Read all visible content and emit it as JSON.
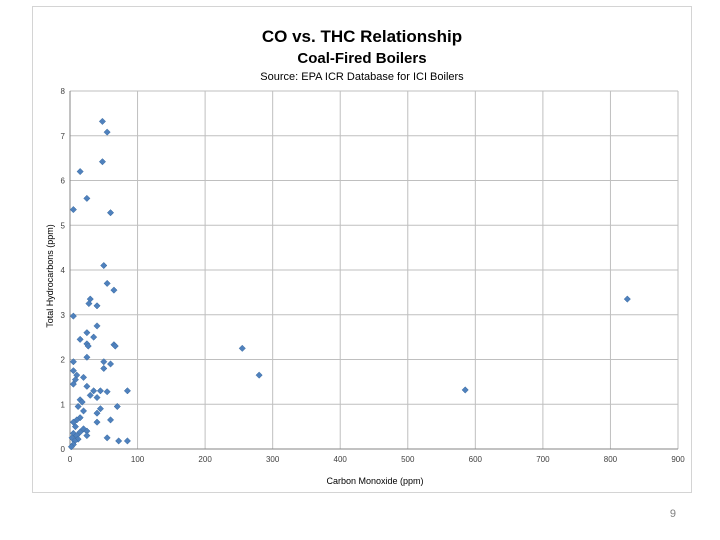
{
  "slide": {
    "page_number": "9"
  },
  "chart_data": {
    "type": "scatter",
    "title": "CO vs. THC Relationship",
    "subtitle": "Coal-Fired Boilers",
    "source": "Source:  EPA ICR Database for ICI Boilers",
    "xlabel": "Carbon Monoxide (ppm)",
    "ylabel": "Total Hydrocarbons (ppm)",
    "xlim": [
      0,
      900
    ],
    "ylim": [
      0,
      8
    ],
    "xticks": [
      0,
      100,
      200,
      300,
      400,
      500,
      600,
      700,
      800,
      900
    ],
    "yticks": [
      0,
      1,
      2,
      3,
      4,
      5,
      6,
      7,
      8
    ],
    "grid": true,
    "marker_color": "#4f81bd",
    "series": [
      {
        "points": [
          [
            48,
            7.32
          ],
          [
            55,
            7.08
          ],
          [
            48,
            6.42
          ],
          [
            15,
            6.2
          ],
          [
            25,
            5.6
          ],
          [
            5,
            5.35
          ],
          [
            60,
            5.28
          ],
          [
            50,
            4.1
          ],
          [
            55,
            3.7
          ],
          [
            65,
            3.55
          ],
          [
            30,
            3.35
          ],
          [
            28,
            3.25
          ],
          [
            40,
            3.2
          ],
          [
            5,
            2.97
          ],
          [
            40,
            2.75
          ],
          [
            25,
            2.6
          ],
          [
            35,
            2.5
          ],
          [
            15,
            2.45
          ],
          [
            25,
            2.35
          ],
          [
            27,
            2.3
          ],
          [
            65,
            2.33
          ],
          [
            67,
            2.3
          ],
          [
            25,
            2.05
          ],
          [
            5,
            1.95
          ],
          [
            50,
            1.95
          ],
          [
            60,
            1.9
          ],
          [
            5,
            1.75
          ],
          [
            50,
            1.8
          ],
          [
            10,
            1.65
          ],
          [
            20,
            1.6
          ],
          [
            8,
            1.55
          ],
          [
            5,
            1.45
          ],
          [
            25,
            1.4
          ],
          [
            35,
            1.3
          ],
          [
            45,
            1.3
          ],
          [
            55,
            1.28
          ],
          [
            85,
            1.3
          ],
          [
            30,
            1.2
          ],
          [
            40,
            1.15
          ],
          [
            15,
            1.1
          ],
          [
            18,
            1.05
          ],
          [
            12,
            0.95
          ],
          [
            45,
            0.9
          ],
          [
            20,
            0.85
          ],
          [
            70,
            0.95
          ],
          [
            40,
            0.8
          ],
          [
            15,
            0.7
          ],
          [
            10,
            0.65
          ],
          [
            5,
            0.6
          ],
          [
            60,
            0.65
          ],
          [
            40,
            0.6
          ],
          [
            8,
            0.5
          ],
          [
            20,
            0.45
          ],
          [
            25,
            0.4
          ],
          [
            15,
            0.38
          ],
          [
            5,
            0.35
          ],
          [
            10,
            0.3
          ],
          [
            25,
            0.3
          ],
          [
            3,
            0.25
          ],
          [
            55,
            0.25
          ],
          [
            12,
            0.22
          ],
          [
            7,
            0.18
          ],
          [
            72,
            0.18
          ],
          [
            85,
            0.18
          ],
          [
            5,
            0.1
          ],
          [
            2,
            0.05
          ],
          [
            255,
            2.25
          ],
          [
            280,
            1.65
          ],
          [
            585,
            1.32
          ],
          [
            825,
            3.35
          ]
        ]
      }
    ]
  }
}
